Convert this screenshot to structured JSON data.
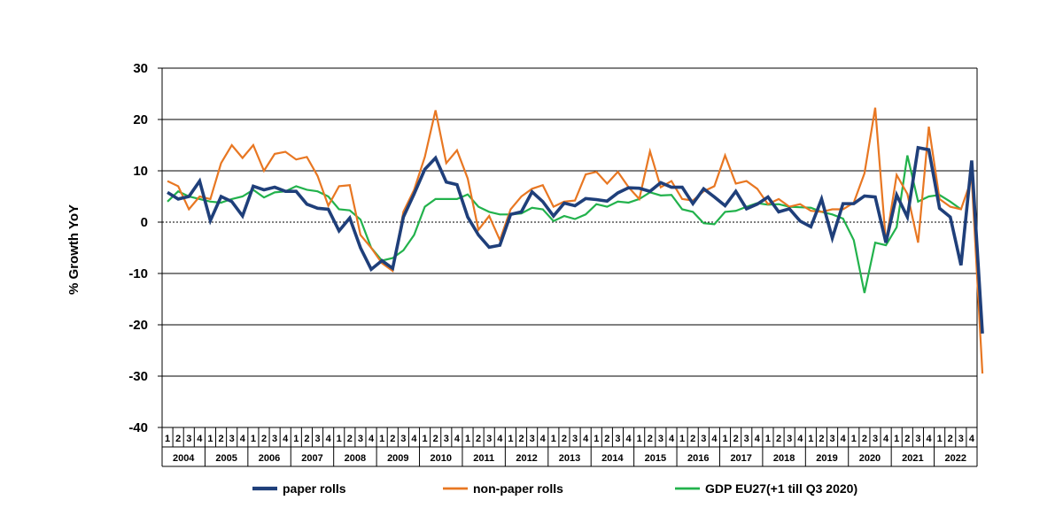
{
  "chart_data": {
    "type": "line",
    "ylabel": "% Growth YoY",
    "ylim": [
      -40,
      30
    ],
    "yticks": [
      30,
      20,
      10,
      0,
      -10,
      -20,
      -30,
      -40
    ],
    "grid": true,
    "legend_position": "bottom",
    "quarter_labels": [
      "1",
      "2",
      "3",
      "4"
    ],
    "years": [
      "2004",
      "2005",
      "2006",
      "2007",
      "2008",
      "2009",
      "2010",
      "2011",
      "2012",
      "2013",
      "2014",
      "2015",
      "2016",
      "2017",
      "2018",
      "2019",
      "2020",
      "2021",
      "2022"
    ],
    "series": [
      {
        "name": "paper rolls",
        "color": "#1f3f7a",
        "values": [
          5.8,
          4.5,
          5.0,
          8.0,
          0.3,
          5.0,
          4.0,
          1.2,
          7.0,
          6.3,
          6.8,
          6.0,
          6.0,
          3.5,
          2.7,
          2.5,
          -1.7,
          0.8,
          -5.0,
          -9.2,
          -7.5,
          -9.0,
          1.0,
          5.5,
          10.3,
          12.5,
          7.8,
          7.3,
          1.0,
          -2.5,
          -4.9,
          -4.5,
          1.5,
          2.0,
          5.9,
          4.0,
          1.2,
          3.7,
          3.2,
          4.6,
          4.4,
          4.1,
          5.7,
          6.7,
          6.6,
          6.0,
          7.7,
          6.8,
          6.8,
          3.6,
          6.5,
          4.9,
          3.2,
          6.0,
          2.6,
          3.5,
          4.9,
          2.0,
          2.6,
          0.2,
          -0.9,
          4.5,
          -3.1,
          3.6,
          3.6,
          5.1,
          4.9,
          -4.0,
          5.3,
          1.0,
          14.5,
          14.1,
          2.7,
          1.0,
          -8.4,
          12.0,
          -21.7
        ],
        "end_offset": 0
      },
      {
        "name": "non-paper rolls",
        "color": "#e87722",
        "values": [
          8.0,
          7.0,
          2.5,
          5.0,
          4.5,
          11.5,
          15.0,
          12.5,
          15.0,
          10.0,
          13.3,
          13.7,
          12.2,
          12.7,
          9.0,
          3.2,
          7.0,
          7.2,
          -2.5,
          -5.0,
          -8.0,
          -9.5,
          2.0,
          6.3,
          12.7,
          21.8,
          11.5,
          14.0,
          8.5,
          -1.5,
          1.2,
          -3.5,
          2.5,
          5.0,
          6.5,
          7.2,
          3.0,
          4.0,
          4.2,
          9.3,
          9.8,
          7.5,
          9.8,
          6.8,
          4.5,
          13.8,
          6.8,
          8.0,
          4.5,
          4.2,
          6.0,
          7.0,
          13.0,
          7.5,
          8.0,
          6.5,
          3.5,
          4.5,
          3.0,
          3.5,
          2.2,
          2.0,
          2.5,
          2.5,
          3.8,
          9.5,
          22.3,
          -4.0,
          9.2,
          5.5,
          -4.0,
          18.6,
          4.5,
          3.0,
          2.5,
          8.5,
          -29.5
        ],
        "end_offset": 0
      },
      {
        "name": "GDP EU27(+1 till Q3 2020)",
        "color": "#22b24c",
        "values": [
          4.0,
          6.0,
          5.0,
          4.5,
          4.0,
          3.8,
          4.5,
          5.0,
          6.3,
          4.8,
          5.8,
          6.0,
          7.0,
          6.3,
          6.0,
          5.0,
          2.5,
          2.3,
          0.5,
          -5.0,
          -7.5,
          -7.0,
          -5.5,
          -2.5,
          3.0,
          4.5,
          4.5,
          4.5,
          5.4,
          3.0,
          2.0,
          1.5,
          1.5,
          1.7,
          2.8,
          2.5,
          0.2,
          1.2,
          0.6,
          1.5,
          3.5,
          3.0,
          4.0,
          3.8,
          4.5,
          5.8,
          5.2,
          5.3,
          2.5,
          2.0,
          -0.2,
          -0.4,
          2.0,
          2.2,
          3.0,
          3.7,
          3.4,
          3.5,
          3.0,
          2.9,
          2.8,
          2.0,
          1.5,
          0.7,
          -3.5,
          -13.8,
          -4.0,
          -4.5,
          -1.0,
          13.0,
          4.0,
          5.0,
          5.3,
          4.0,
          2.5
        ],
        "end_offset": 1
      }
    ]
  }
}
